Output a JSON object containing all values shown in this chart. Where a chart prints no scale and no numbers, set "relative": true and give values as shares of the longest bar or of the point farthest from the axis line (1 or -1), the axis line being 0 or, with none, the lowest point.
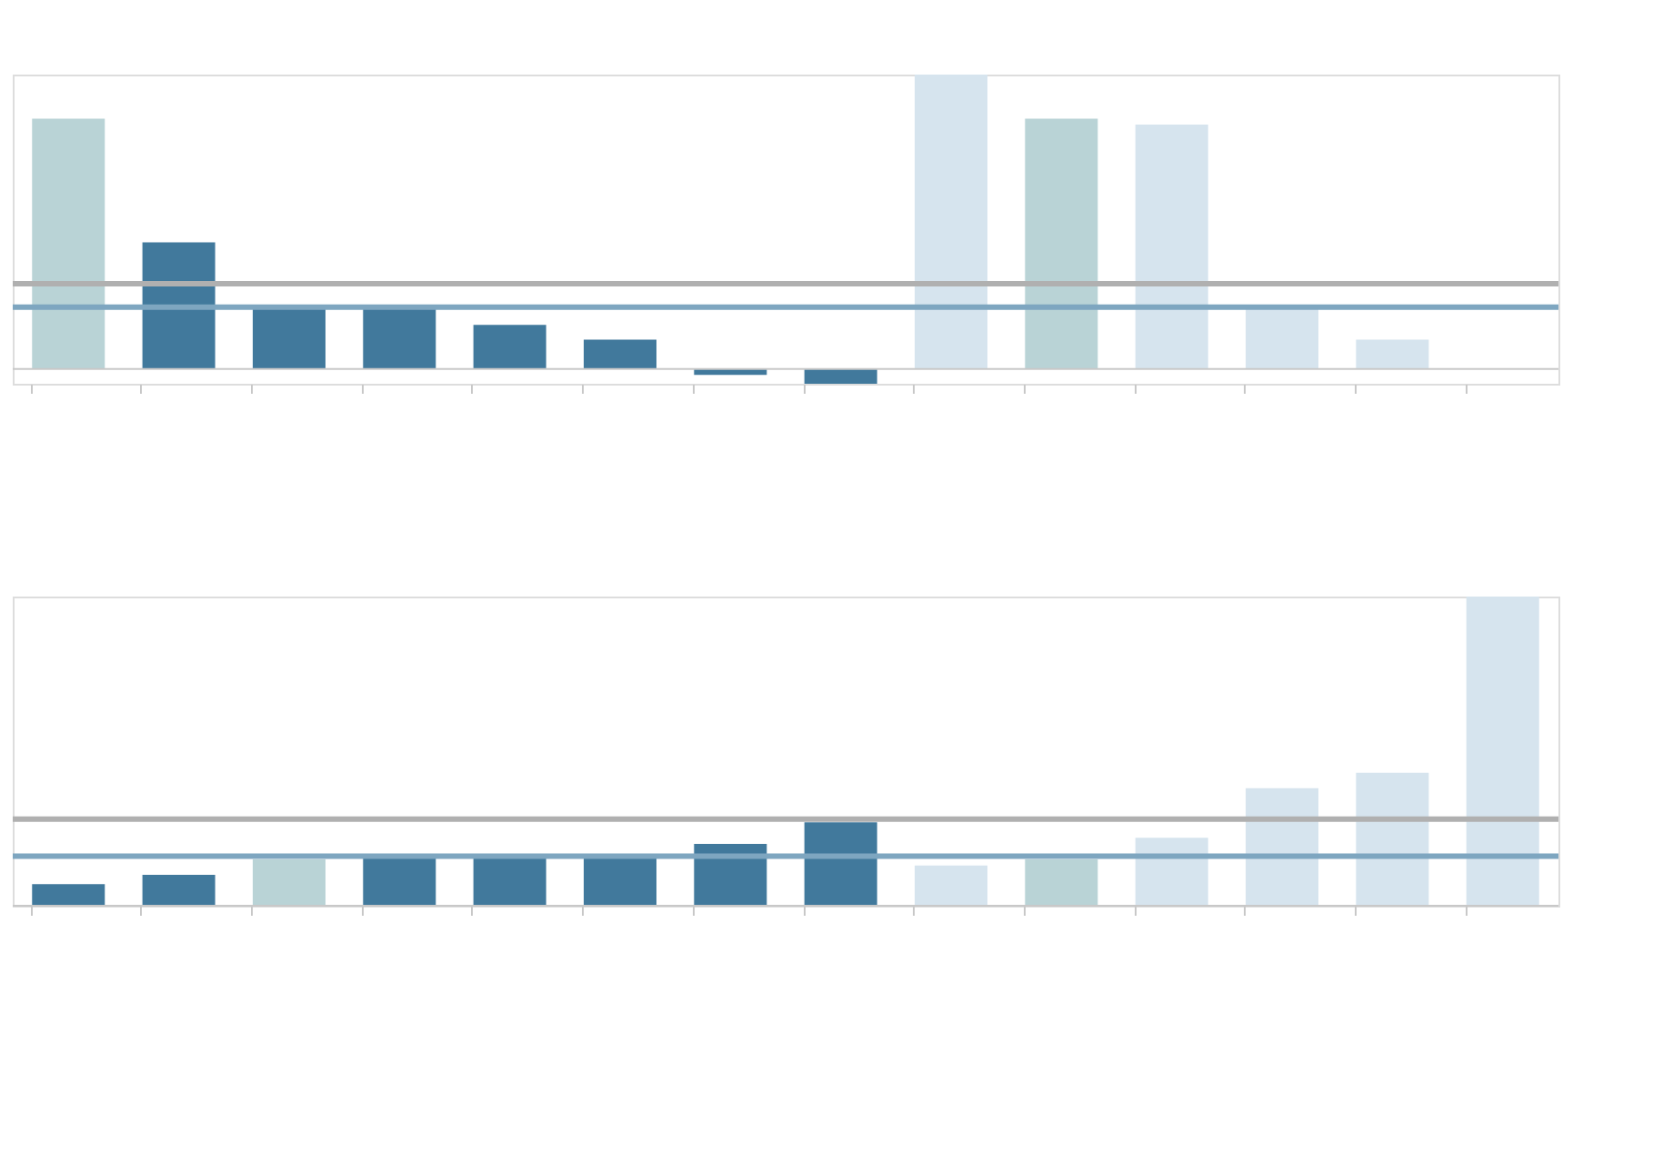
{
  "chart_data": [
    {
      "type": "bar",
      "relative": true,
      "categories": [
        null,
        null,
        null,
        null,
        null,
        null,
        null,
        null,
        null,
        null,
        null,
        null,
        null,
        null
      ],
      "values": [
        0.85,
        0.43,
        0.21,
        0.21,
        0.15,
        0.1,
        -0.02,
        -0.05,
        1,
        0.85,
        0.83,
        0.21,
        0.1,
        null
      ],
      "colors": [
        "#b9d3d6",
        "#41799c",
        "#41799c",
        "#41799c",
        "#41799c",
        "#41799c",
        "#41799c",
        "#41799c",
        "#d6e4ee",
        "#b9d3d6",
        "#d6e4ee",
        "#d6e4ee",
        "#d6e4ee",
        "#d6e4ee"
      ],
      "ref_lines": [
        {
          "axis": "y",
          "value": 0.29,
          "color": "#b0b0b0"
        },
        {
          "axis": "y",
          "value": 0.21,
          "color": "#7ea6c0"
        }
      ],
      "tick_labels": false
    },
    {
      "type": "bar",
      "relative": true,
      "categories": [
        null,
        null,
        null,
        null,
        null,
        null,
        null,
        null,
        null,
        null,
        null,
        null,
        null,
        null
      ],
      "values": [
        0.07,
        0.1,
        0.15,
        0.16,
        0.16,
        0.16,
        0.2,
        0.27,
        0.13,
        0.15,
        0.22,
        0.38,
        0.43,
        1
      ],
      "colors": [
        "#41799c",
        "#41799c",
        "#b9d3d6",
        "#41799c",
        "#41799c",
        "#41799c",
        "#41799c",
        "#41799c",
        "#d6e4ee",
        "#b9d3d6",
        "#d6e4ee",
        "#d6e4ee",
        "#d6e4ee",
        "#d6e4ee"
      ],
      "ref_lines": [
        {
          "axis": "y",
          "value": 0.28,
          "color": "#b0b0b0"
        },
        {
          "axis": "y",
          "value": 0.16,
          "color": "#7ea6c0"
        }
      ],
      "tick_labels": false
    }
  ]
}
